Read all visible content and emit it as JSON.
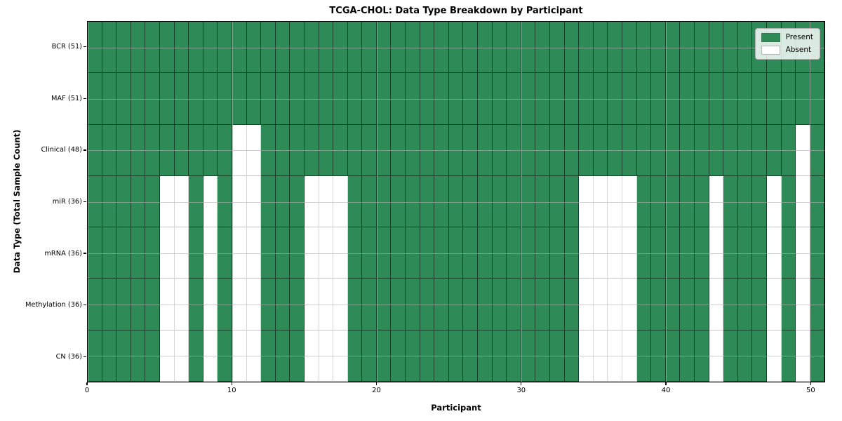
{
  "title": "TCGA-CHOL: Data Type Breakdown by Participant",
  "xlabel": "Participant",
  "ylabel": "Data Type (Total Sample Count)",
  "legend": [
    {
      "label": "Present",
      "color": "#2e8b57"
    },
    {
      "label": "Absent",
      "color": "#ffffff"
    }
  ],
  "x_ticks": [
    0,
    10,
    20,
    30,
    40,
    50
  ],
  "chart_data": {
    "type": "heatmap",
    "title": "TCGA-CHOL: Data Type Breakdown by Participant",
    "xlabel": "Participant",
    "ylabel": "Data Type (Total Sample Count)",
    "x_range": [
      0,
      51
    ],
    "n_participants": 51,
    "present_color": "#2e8b57",
    "absent_color": "#ffffff",
    "legend_position": "upper right",
    "rows": [
      {
        "label": "BCR (51)",
        "count": 51,
        "absent": []
      },
      {
        "label": "MAF (51)",
        "count": 51,
        "absent": []
      },
      {
        "label": "Clinical (48)",
        "count": 48,
        "absent": [
          10,
          11,
          49
        ]
      },
      {
        "label": "miR (36)",
        "count": 36,
        "absent": [
          5,
          6,
          8,
          10,
          11,
          15,
          16,
          17,
          34,
          35,
          36,
          37,
          43,
          47,
          49
        ]
      },
      {
        "label": "mRNA (36)",
        "count": 36,
        "absent": [
          5,
          6,
          8,
          10,
          11,
          15,
          16,
          17,
          34,
          35,
          36,
          37,
          43,
          47,
          49
        ]
      },
      {
        "label": "Methylation (36)",
        "count": 36,
        "absent": [
          5,
          6,
          8,
          10,
          11,
          15,
          16,
          17,
          34,
          35,
          36,
          37,
          43,
          47,
          49
        ]
      },
      {
        "label": "CN (36)",
        "count": 36,
        "absent": [
          5,
          6,
          8,
          10,
          11,
          15,
          16,
          17,
          34,
          35,
          36,
          37,
          43,
          47,
          49
        ]
      }
    ]
  }
}
